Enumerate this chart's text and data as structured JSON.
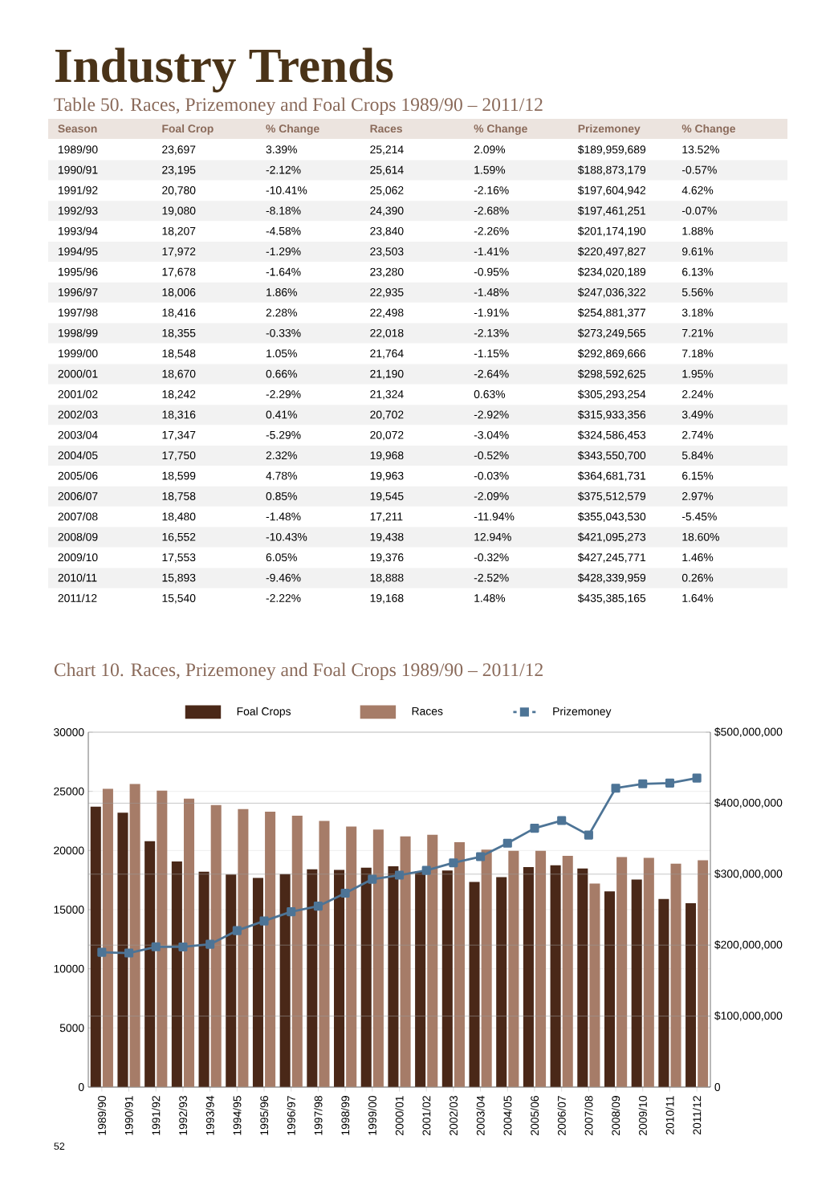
{
  "chart_data": [
    {
      "type": "other",
      "title": "Industry Trends",
      "subtitle": "Table 50. Races, Prizemoney and Foal Crops 1989/90 – 2011/12",
      "categories": [
        "Season",
        "Foal Crop",
        "% Change",
        "Races",
        "% Change",
        "Prizemoney",
        "% Change"
      ],
      "annotations": [
        "1989/90",
        "23,697",
        "3.39%",
        "25,214",
        "2.09%",
        "$189,959,689",
        "13.52%",
        "1990/91",
        "23,195",
        "-2.12%",
        "25,614",
        "1.59%",
        "$188,873,179",
        "-0.57%",
        "1991/92",
        "20,780",
        "-10.41%",
        "25,062",
        "-2.16%",
        "$197,604,942",
        "4.62%",
        "1992/93",
        "19,080",
        "-8.18%",
        "24,390",
        "-2.68%",
        "$197,461,251",
        "-0.07%",
        "1993/94",
        "18,207",
        "-4.58%",
        "23,840",
        "-2.26%",
        "$201,174,190",
        "1.88%",
        "1994/95",
        "17,972",
        "-1.29%",
        "23,503",
        "-1.41%",
        "$220,497,827",
        "9.61%",
        "1995/96",
        "17,678",
        "-1.64%",
        "23,280",
        "-0.95%",
        "$234,020,189",
        "6.13%",
        "1996/97",
        "18,006",
        "1.86%",
        "22,935",
        "-1.48%",
        "$247,036,322",
        "5.56%",
        "1997/98",
        "18,416",
        "2.28%",
        "22,498",
        "-1.91%",
        "$254,881,377",
        "3.18%",
        "1998/99",
        "18,355",
        "-0.33%",
        "22,018",
        "-2.13%",
        "$273,249,565",
        "7.21%",
        "1999/00",
        "18,548",
        "1.05%",
        "21,764",
        "-1.15%",
        "$292,869,666",
        "7.18%",
        "2000/01",
        "18,670",
        "0.66%",
        "21,190",
        "-2.64%",
        "$298,592,625",
        "1.95%",
        "2001/02",
        "18,242",
        "-2.29%",
        "21,324",
        "0.63%",
        "$305,293,254",
        "2.24%",
        "2002/03",
        "18,316",
        "0.41%",
        "20,702",
        "-2.92%",
        "$315,933,356",
        "3.49%",
        "2003/04",
        "17,347",
        "-5.29%",
        "20,072",
        "-3.04%",
        "$324,586,453",
        "2.74%",
        "2004/05",
        "17,750",
        "2.32%",
        "19,968",
        "-0.52%",
        "$343,550,700",
        "5.84%",
        "2005/06",
        "18,599",
        "4.78%",
        "19,963",
        "-0.03%",
        "$364,681,731",
        "6.15%",
        "2006/07",
        "18,758",
        "0.85%",
        "19,545",
        "-2.09%",
        "$375,512,579",
        "2.97%",
        "2007/08",
        "18,480",
        "-1.48%",
        "17,211",
        "-11.94%",
        "$355,043,530",
        "-5.45%",
        "2008/09",
        "16,552",
        "-10.43%",
        "19,438",
        "12.94%",
        "$421,095,273",
        "18.60%",
        "2009/10",
        "17,553",
        "6.05%",
        "19,376",
        "-0.32%",
        "$427,245,771",
        "1.46%",
        "2010/11",
        "15,893",
        "-9.46%",
        "18,888",
        "-2.52%",
        "$428,339,959",
        "0.26%",
        "2011/12",
        "15,540",
        "-2.22%",
        "19,168",
        "1.48%",
        "$435,385,165",
        "1.64%"
      ]
    },
    {
      "type": "bar",
      "title": "Chart 10. Races, Prizemoney and Foal Crops 1989/90 – 2011/12",
      "categories": [
        "1989/90",
        "1990/91",
        "1991/92",
        "1992/93",
        "1993/94",
        "1994/95",
        "1995/96",
        "1996/97",
        "1997/98",
        "1998/99",
        "1999/00",
        "2000/01",
        "2001/02",
        "2002/03",
        "2003/04",
        "2004/05",
        "2005/06",
        "2006/07",
        "2007/08",
        "2008/09",
        "2009/10",
        "2010/11",
        "2011/12"
      ],
      "series": [
        {
          "name": "Foal Crops",
          "color": "#4a2818",
          "values": [
            23697,
            23195,
            20780,
            19080,
            18207,
            17972,
            17678,
            18006,
            18416,
            18355,
            18548,
            18670,
            18242,
            18316,
            17347,
            17750,
            18599,
            18758,
            18480,
            16552,
            17553,
            15893,
            15540
          ]
        },
        {
          "name": "Races",
          "color": "#a67c68",
          "values": [
            25214,
            25614,
            25062,
            24390,
            23840,
            23503,
            23280,
            22935,
            22498,
            22018,
            21764,
            21190,
            21324,
            20702,
            20072,
            19968,
            19963,
            19545,
            17211,
            19438,
            19376,
            18888,
            19168
          ]
        },
        {
          "name": "Prizemoney",
          "type": "line",
          "axis": "y2",
          "marker": "square",
          "color": "#4d7496",
          "values": [
            189959689,
            188873179,
            197604942,
            197461251,
            201174190,
            220497827,
            234020189,
            247036322,
            254881377,
            273249565,
            292869666,
            298592625,
            305293254,
            315933356,
            324586453,
            343550700,
            364681731,
            375512579,
            355043530,
            421095273,
            427245771,
            428339959,
            435385165
          ]
        }
      ],
      "ylim": [
        0,
        30000
      ],
      "yticks": [
        0,
        5000,
        10000,
        15000,
        20000,
        25000,
        30000
      ],
      "y2lim": [
        0,
        500000000
      ],
      "y2ticks": [
        0,
        {
          "value": 100000000,
          "label": "$100,000,000"
        },
        {
          "value": 200000000,
          "label": "$200,000,000"
        },
        {
          "value": 300000000,
          "label": "$300,000,000"
        },
        {
          "value": 400000000,
          "label": "$400,000,000"
        },
        {
          "value": 500000000,
          "label": "$500,000,000"
        }
      ],
      "grid": true,
      "legend": "top",
      "annotations": [
        "52"
      ]
    }
  ]
}
